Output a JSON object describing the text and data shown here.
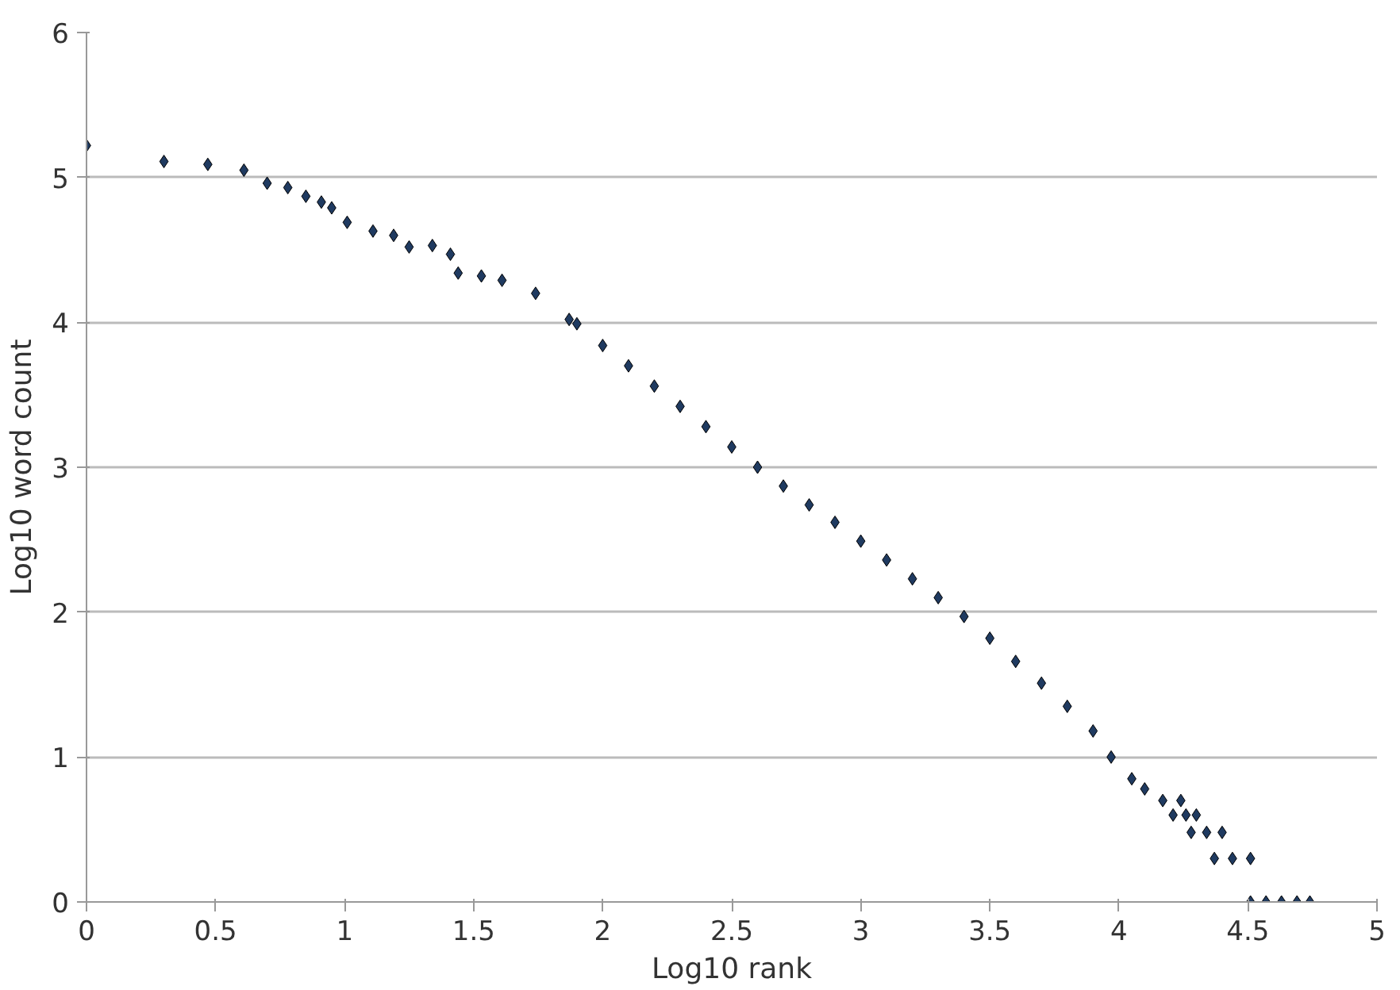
{
  "chart_data": {
    "type": "scatter",
    "xlabel": "Log10 rank",
    "ylabel": "Log10 word count",
    "x": [
      0,
      0.3,
      0.47,
      0.61,
      0.7,
      0.78,
      0.85,
      0.91,
      0.95,
      1.01,
      1.11,
      1.19,
      1.25,
      1.34,
      1.41,
      1.44,
      1.53,
      1.61,
      1.74,
      1.87,
      1.9,
      2.0,
      2.1,
      2.2,
      2.3,
      2.4,
      2.5,
      2.6,
      2.7,
      2.8,
      2.9,
      3.0,
      3.1,
      3.2,
      3.3,
      3.4,
      3.5,
      3.6,
      3.7,
      3.8,
      3.9,
      3.97,
      4.05,
      4.1,
      4.17,
      4.24,
      4.21,
      4.26,
      4.3,
      4.28,
      4.34,
      4.4,
      4.37,
      4.44,
      4.51,
      4.51,
      4.57,
      4.63,
      4.69,
      4.74
    ],
    "series": [
      {
        "color": "#1f3a60",
        "values": [
          5.22,
          5.11,
          5.09,
          5.05,
          4.96,
          4.93,
          4.87,
          4.83,
          4.79,
          4.69,
          4.63,
          4.6,
          4.52,
          4.53,
          4.47,
          4.34,
          4.32,
          4.29,
          4.2,
          4.02,
          3.99,
          3.84,
          3.7,
          3.56,
          3.42,
          3.28,
          3.14,
          3.0,
          2.87,
          2.74,
          2.62,
          2.49,
          2.36,
          2.23,
          2.1,
          1.97,
          1.82,
          1.66,
          1.51,
          1.35,
          1.18,
          1.0,
          0.85,
          0.78,
          0.7,
          0.7,
          0.6,
          0.6,
          0.6,
          0.48,
          0.48,
          0.48,
          0.3,
          0.3,
          0.3,
          0,
          0,
          0,
          0,
          0
        ]
      }
    ],
    "xlim": [
      0,
      5
    ],
    "ylim": [
      0,
      6
    ],
    "xticks": [
      0,
      0.5,
      1,
      1.5,
      2,
      2.5,
      3,
      3.5,
      4,
      4.5,
      5
    ],
    "yticks": [
      0,
      1,
      2,
      3,
      4,
      5,
      6
    ],
    "grid": "y",
    "marker": "diamond"
  }
}
